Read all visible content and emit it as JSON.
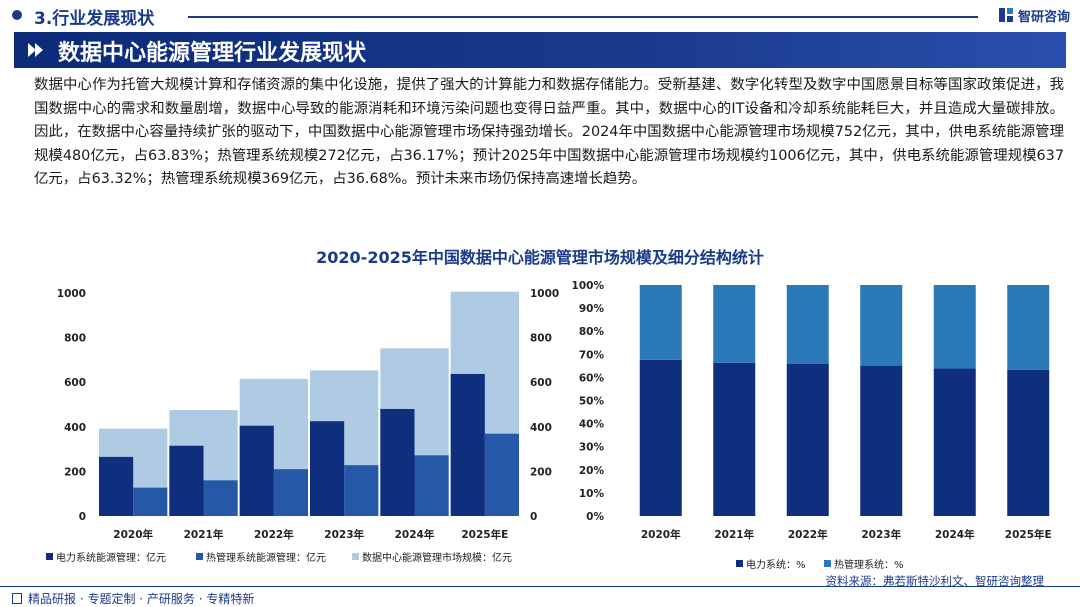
{
  "header": {
    "section": "3.行业发展现状",
    "brand": "智研咨询",
    "title": "数据中心能源管理行业发展现状"
  },
  "intro": "数据中心作为托管大规模计算和存储资源的集中化设施，提供了强大的计算能力和数据存储能力。受新基建、数字化转型及数字中国愿景目标等国家政策促进，我国数据中心的需求和数量剧增，数据中心导致的能源消耗和环境污染问题也变得日益严重。其中，数据中心的IT设备和冷却系统能耗巨大，并且造成大量碳排放。因此，在数据中心容量持续扩张的驱动下，中国数据中心能源管理市场保持强劲增长。2024年中国数据中心能源管理市场规模752亿元，其中，供电系统能源管理规模480亿元，占63.83%；热管理系统规模272亿元，占36.17%；预计2025年中国数据中心能源管理市场规模约1006亿元，其中，供电系统能源管理规模637亿元，占63.32%；热管理系统规模369亿元，占36.68%。预计未来市场仍保持高速增长趋势。",
  "chart_title": "2020-2025年中国数据中心能源管理市场规模及细分结构统计",
  "colors": {
    "dark": "#0f2e7d",
    "mid": "#2658a8",
    "light": "#aecbe3",
    "pct_dark": "#0f2e7d",
    "pct_light": "#2a78b8"
  },
  "chart_data": [
    {
      "type": "bar",
      "categories": [
        "2020年",
        "2021年",
        "2022年",
        "2023年",
        "2024年",
        "2025年E"
      ],
      "series": [
        {
          "name": "电力系统能源管理：亿元",
          "values": [
            265,
            315,
            405,
            425,
            480,
            637
          ]
        },
        {
          "name": "热管理系统能源管理：亿元",
          "values": [
            127,
            160,
            210,
            228,
            272,
            369
          ]
        },
        {
          "name": "数据中心能源管理市场规模：亿元",
          "values": [
            392,
            475,
            615,
            653,
            752,
            1006
          ]
        }
      ],
      "ylim": [
        0,
        1000
      ],
      "yticks": [
        0,
        200,
        400,
        600,
        800,
        1000
      ],
      "y2ticks": [
        0,
        200,
        400,
        600,
        800,
        1000
      ]
    },
    {
      "type": "bar",
      "stacked": true,
      "categories": [
        "2020年",
        "2021年",
        "2022年",
        "2023年",
        "2024年",
        "2025年E"
      ],
      "series": [
        {
          "name": "电力系统：%",
          "values": [
            67.6,
            66.3,
            65.8,
            65.1,
            63.83,
            63.32
          ]
        },
        {
          "name": "热管理系统：%",
          "values": [
            32.4,
            33.7,
            34.2,
            34.9,
            36.17,
            36.68
          ]
        }
      ],
      "ylim": [
        0,
        100
      ],
      "yticks": [
        "0%",
        "10%",
        "20%",
        "30%",
        "40%",
        "50%",
        "60%",
        "70%",
        "80%",
        "90%",
        "100%"
      ]
    }
  ],
  "source": "资料来源：弗若斯特沙利文、智研咨询整理",
  "footer": "精品研报 · 专题定制 · 产研服务 · 专精特新"
}
